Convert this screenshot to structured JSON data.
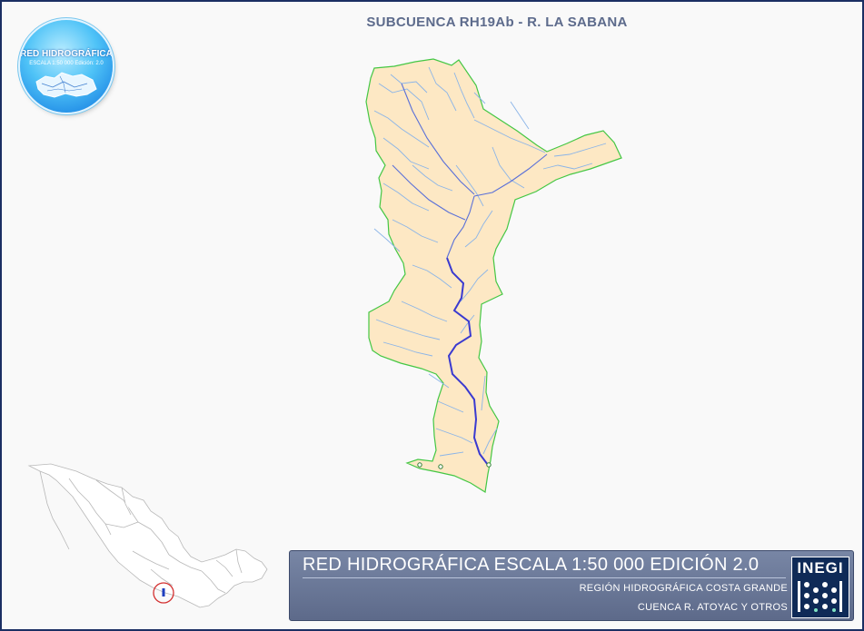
{
  "title": "SUBCUENCA RH19Ab - R. LA SABANA",
  "logo": {
    "title": "RED HIDROGRÁFICA",
    "subtitle": "ESCALA 1:50 000  Edición: 2.0"
  },
  "panel": {
    "title": "RED HIDROGRÁFICA ESCALA 1:50 000 EDICIÓN 2.0",
    "line1": "REGIÓN HIDROGRÁFICA COSTA GRANDE",
    "line2": "CUENCA R. ATOYAC Y OTROS",
    "brand": "INEGI"
  },
  "colors": {
    "basin_fill": "#fde8c4",
    "basin_border": "#44c744",
    "streams": "#8ab4e8",
    "main_river": "#3a3ad0",
    "panel": "#66738f",
    "locator_circle": "#d32f2f"
  },
  "icons": {
    "logo": "hydro-network-badge",
    "brand": "inegi-logo"
  }
}
